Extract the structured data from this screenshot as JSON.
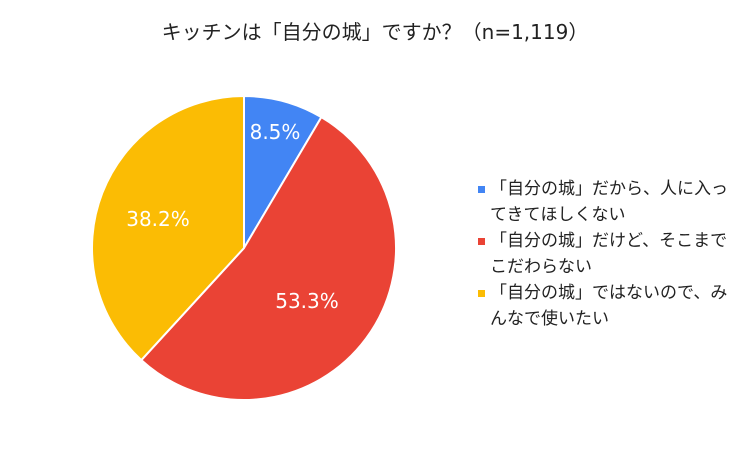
{
  "chart_data": {
    "type": "pie",
    "title": "キッチンは「自分の城」ですか？（n=1,119）",
    "slices": [
      {
        "label": "「自分の城」だから、人に入ってきてほしくない",
        "value": 8.5,
        "display": "8.5%",
        "color": "#4285F4"
      },
      {
        "label": "「自分の城」だけど、そこまでこだわらない",
        "value": 53.3,
        "display": "53.3%",
        "color": "#EA4335"
      },
      {
        "label": "「自分の城」ではないので、みんなで使いたい",
        "value": 38.2,
        "display": "38.2%",
        "color": "#FBBC04"
      }
    ],
    "legend_position": "right"
  }
}
